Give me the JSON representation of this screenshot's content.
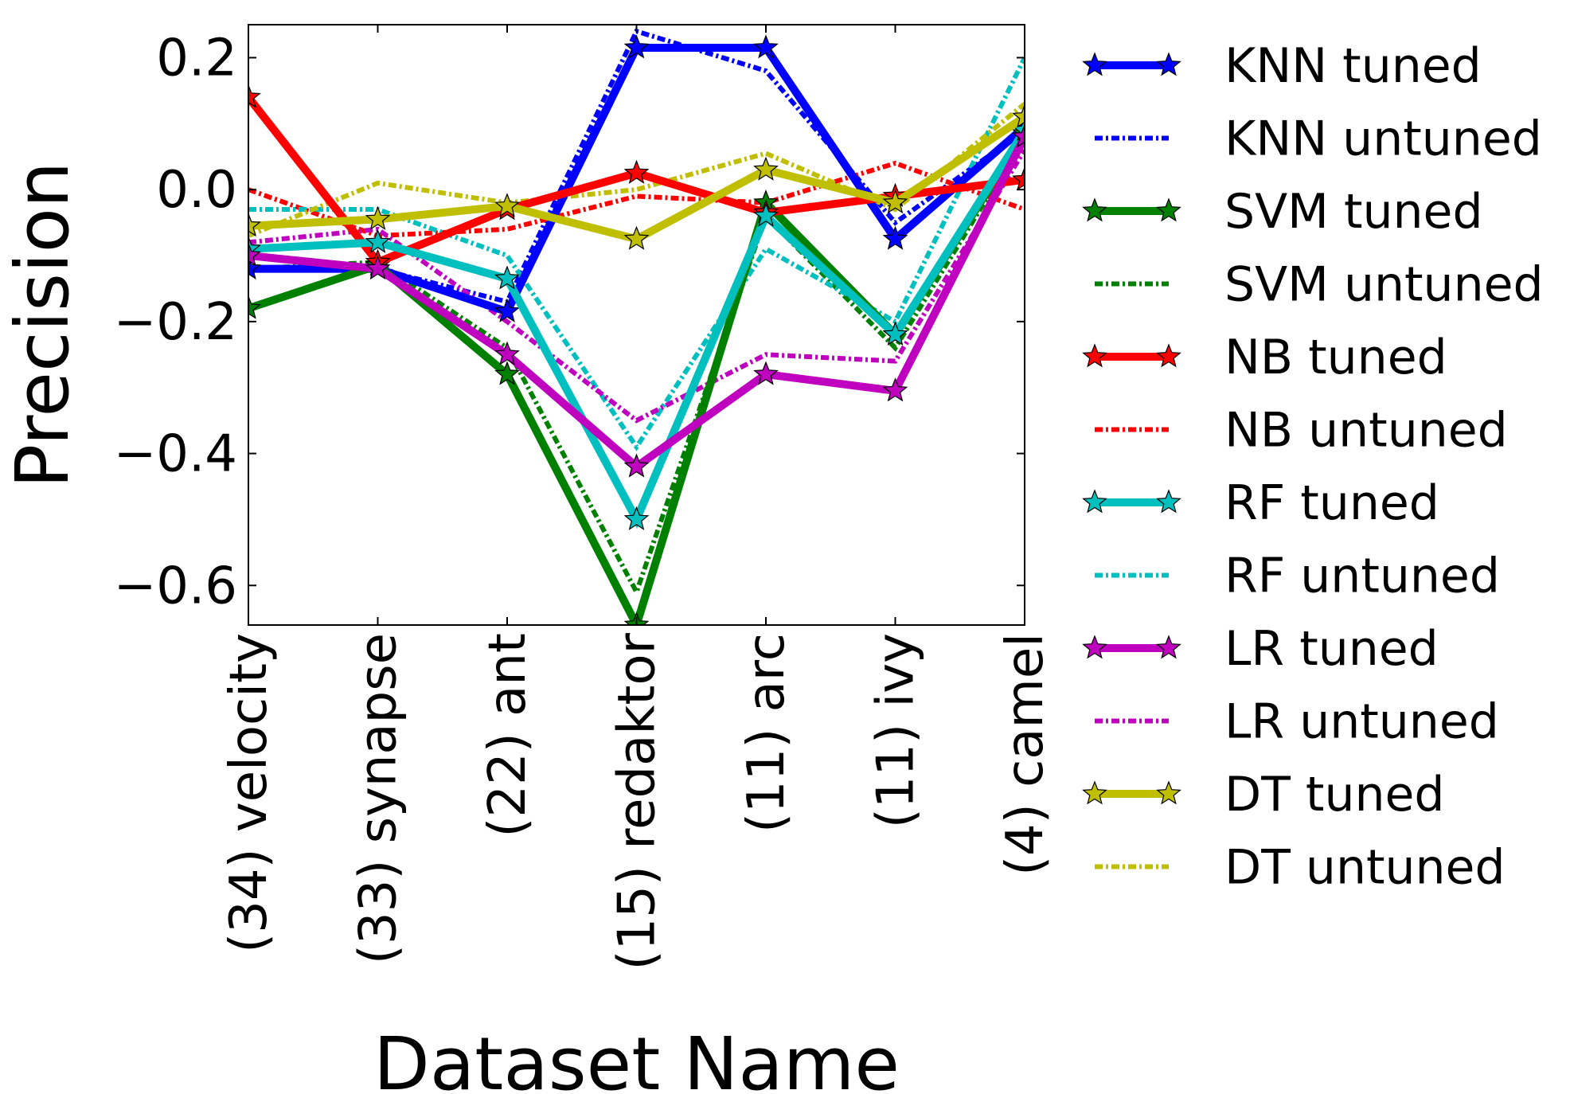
{
  "chart_data": {
    "type": "line",
    "xlabel": "Dataset Name",
    "ylabel": "Precision",
    "categories": [
      "(34) velocity",
      "(33) synapse",
      "(22) ant",
      "(15) redaktor",
      "(11) arc",
      "(11) ivy",
      "(4) camel"
    ],
    "ylim": [
      -0.66,
      0.25
    ],
    "yticks": [
      0.2,
      0.0,
      -0.2,
      -0.4,
      -0.6
    ],
    "ytick_labels": [
      "0.2",
      "0.0",
      "−0.2",
      "−0.4",
      "−0.6"
    ],
    "grid": false,
    "legend_position": "right, outside plot",
    "series": [
      {
        "name": "KNN tuned",
        "color": "#0000ff",
        "style": "solid",
        "marker": "star",
        "values": [
          -0.12,
          -0.12,
          -0.185,
          0.215,
          0.215,
          -0.075,
          0.095
        ]
      },
      {
        "name": "KNN untuned",
        "color": "#0000ff",
        "style": "dashdot",
        "marker": "none",
        "values": [
          -0.1,
          -0.12,
          -0.17,
          0.24,
          0.18,
          -0.05,
          0.09
        ]
      },
      {
        "name": "SVM tuned",
        "color": "#008000",
        "style": "solid",
        "marker": "star",
        "values": [
          -0.18,
          -0.115,
          -0.28,
          -0.66,
          -0.02,
          -0.22,
          0.085
        ]
      },
      {
        "name": "SVM untuned",
        "color": "#008000",
        "style": "dashdot",
        "marker": "none",
        "values": [
          -0.12,
          -0.11,
          -0.24,
          -0.61,
          -0.04,
          -0.24,
          0.08
        ]
      },
      {
        "name": "NB tuned",
        "color": "#ff0000",
        "style": "solid",
        "marker": "star",
        "values": [
          0.14,
          -0.11,
          -0.03,
          0.025,
          -0.035,
          -0.01,
          0.015
        ]
      },
      {
        "name": "NB untuned",
        "color": "#ff0000",
        "style": "dashdot",
        "marker": "none",
        "values": [
          0.0,
          -0.07,
          -0.06,
          -0.01,
          -0.02,
          0.04,
          -0.03
        ]
      },
      {
        "name": "RF tuned",
        "color": "#00bfbf",
        "style": "solid",
        "marker": "star",
        "values": [
          -0.09,
          -0.08,
          -0.135,
          -0.5,
          -0.04,
          -0.22,
          0.09
        ]
      },
      {
        "name": "RF untuned",
        "color": "#00bfbf",
        "style": "dashdot",
        "marker": "none",
        "values": [
          -0.03,
          -0.03,
          -0.1,
          -0.39,
          -0.09,
          -0.2,
          0.2
        ]
      },
      {
        "name": "LR tuned",
        "color": "#bf00bf",
        "style": "solid",
        "marker": "star",
        "values": [
          -0.1,
          -0.12,
          -0.25,
          -0.42,
          -0.28,
          -0.305,
          0.08
        ]
      },
      {
        "name": "LR untuned",
        "color": "#bf00bf",
        "style": "dashdot",
        "marker": "none",
        "values": [
          -0.08,
          -0.06,
          -0.2,
          -0.35,
          -0.25,
          -0.26,
          0.06
        ]
      },
      {
        "name": "DT tuned",
        "color": "#bfbf00",
        "style": "solid",
        "marker": "star",
        "values": [
          -0.055,
          -0.045,
          -0.025,
          -0.075,
          0.03,
          -0.02,
          0.11
        ]
      },
      {
        "name": "DT untuned",
        "color": "#bfbf00",
        "style": "dashdot",
        "marker": "none",
        "values": [
          -0.07,
          0.01,
          -0.02,
          0.0,
          0.055,
          -0.03,
          0.13
        ]
      }
    ]
  }
}
